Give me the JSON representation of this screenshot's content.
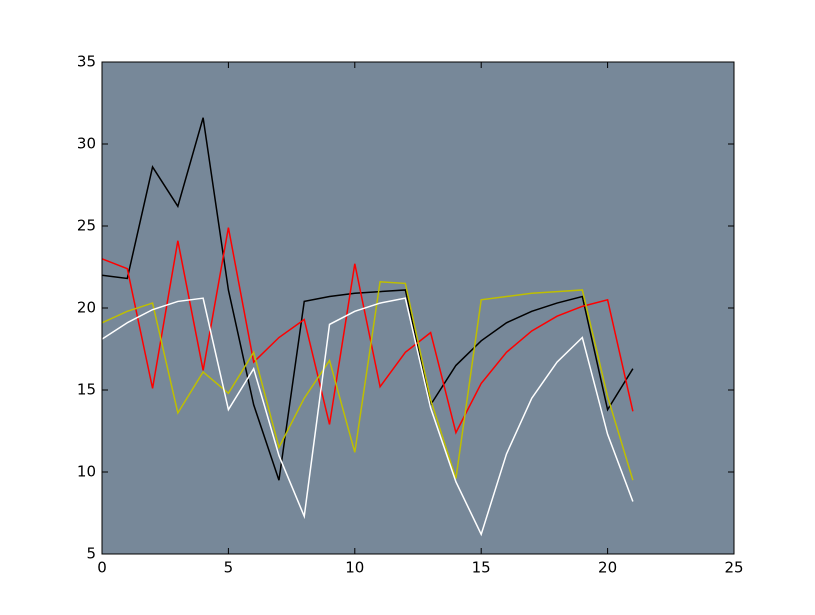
{
  "chart_data": {
    "type": "line",
    "x": [
      0,
      1,
      2,
      3,
      4,
      5,
      6,
      7,
      8,
      9,
      10,
      11,
      12,
      13,
      14,
      15,
      16,
      17,
      18,
      19,
      20,
      21
    ],
    "series": [
      {
        "color": "#000000",
        "values": [
          22.0,
          21.8,
          28.6,
          26.2,
          31.6,
          21.1,
          14.1,
          9.5,
          20.4,
          20.7,
          20.9,
          21.0,
          21.1,
          14.1,
          16.5,
          18.0,
          19.1,
          19.8,
          20.3,
          20.7,
          13.8,
          16.3
        ]
      },
      {
        "color": "#ff0000",
        "values": [
          23.0,
          22.4,
          15.1,
          24.1,
          16.2,
          24.9,
          16.7,
          18.2,
          19.3,
          12.9,
          22.7,
          15.2,
          17.3,
          18.5,
          12.4,
          15.4,
          17.3,
          18.6,
          19.5,
          20.1,
          20.5,
          13.7
        ]
      },
      {
        "color": "#bfbf00",
        "values": [
          19.1,
          19.8,
          20.3,
          13.6,
          16.1,
          14.8,
          17.3,
          11.5,
          14.5,
          16.8,
          11.2,
          21.6,
          21.5,
          14.4,
          9.6,
          20.5,
          20.7,
          20.9,
          21.0,
          21.1,
          14.6,
          9.5
        ]
      },
      {
        "color": "#ffffff",
        "values": [
          18.1,
          19.1,
          19.9,
          20.4,
          20.6,
          13.8,
          16.3,
          11.0,
          7.3,
          19.0,
          19.8,
          20.3,
          20.6,
          13.9,
          9.4,
          6.2,
          11.1,
          14.5,
          16.7,
          18.2,
          12.3,
          8.2
        ]
      }
    ],
    "xlim": [
      0,
      25
    ],
    "xticks": [
      0,
      5,
      10,
      15,
      20,
      25
    ],
    "ylim": [
      5,
      35
    ],
    "yticks": [
      5,
      10,
      15,
      20,
      25,
      30,
      35
    ],
    "background": "#778899"
  }
}
